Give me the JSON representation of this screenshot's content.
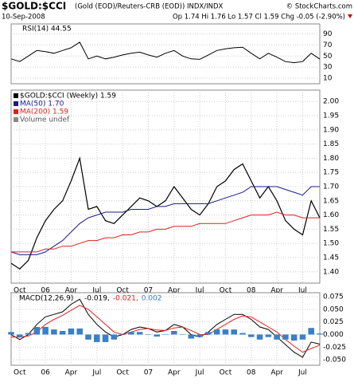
{
  "header": {
    "symbol": "$GOLD:$CCI",
    "description": "(Gold (EOD)/Reuters-CRB (EOD)) INDX/INDX",
    "copyright": "© StockCharts.com",
    "date": "10-Sep-2008",
    "quote": "Op 1.74 Hi 1.76 Lo 1.57 Cl 1.59 Chg -0.05 (-2.90%)"
  },
  "chart_data": [
    {
      "type": "line",
      "panel": "rsi",
      "ylim": [
        0,
        108
      ],
      "yticks": [
        90,
        70,
        50,
        30,
        10
      ],
      "grid": true,
      "series": [
        {
          "name": "RSI(14) 44.55",
          "color": "#000000",
          "values": [
            45,
            40,
            50,
            60,
            58,
            55,
            60,
            65,
            75,
            45,
            50,
            45,
            48,
            52,
            55,
            57,
            52,
            48,
            55,
            60,
            50,
            45,
            44,
            52,
            60,
            63,
            65,
            66,
            55,
            45,
            55,
            48,
            40,
            38,
            40,
            55,
            44.55
          ]
        }
      ]
    },
    {
      "type": "line",
      "panel": "price",
      "ylim": [
        1.36,
        2.04
      ],
      "yticks": [
        {
          "value": 2.0,
          "label": "2.00"
        },
        {
          "value": 1.95,
          "label": "1.95"
        },
        {
          "value": 1.9,
          "label": "1.90"
        },
        {
          "value": 1.85,
          "label": "1.85"
        },
        {
          "value": 1.8,
          "label": "1.80"
        },
        {
          "value": 1.75,
          "label": "1.75"
        },
        {
          "value": 1.7,
          "label": "1.70"
        },
        {
          "value": 1.65,
          "label": "1.65"
        },
        {
          "value": 1.6,
          "label": "1.60"
        },
        {
          "value": 1.55,
          "label": "1.55"
        },
        {
          "value": 1.5,
          "label": "1.50"
        },
        {
          "value": 1.45,
          "label": "1.45"
        },
        {
          "value": 1.4,
          "label": "1.40"
        }
      ],
      "grid": true,
      "volume_label": "Volume undef",
      "categories": [
        null,
        "Oct",
        null,
        null,
        "06",
        null,
        null,
        "Apr",
        null,
        null,
        "Jul",
        null,
        null,
        "Oct",
        null,
        null,
        "07",
        null,
        null,
        "Apr",
        null,
        null,
        "Jul",
        null,
        null,
        "Oct",
        null,
        null,
        "08",
        null,
        null,
        "Apr",
        null,
        null,
        "Jul",
        null,
        null
      ],
      "series": [
        {
          "name": "$GOLD:$CCI (Weekly) 1.59",
          "color": "#000000",
          "values": [
            1.43,
            1.41,
            1.44,
            1.52,
            1.58,
            1.62,
            1.65,
            1.72,
            1.8,
            1.62,
            1.63,
            1.58,
            1.57,
            1.6,
            1.63,
            1.66,
            1.65,
            1.63,
            1.65,
            1.7,
            1.66,
            1.62,
            1.6,
            1.64,
            1.7,
            1.72,
            1.76,
            1.78,
            1.72,
            1.66,
            1.7,
            1.65,
            1.58,
            1.55,
            1.53,
            1.65,
            1.59
          ]
        },
        {
          "name": "MA(50) 1.70",
          "color": "#1a1a8c",
          "values": [
            1.47,
            1.46,
            1.46,
            1.46,
            1.47,
            1.49,
            1.51,
            1.54,
            1.57,
            1.59,
            1.6,
            1.61,
            1.61,
            1.61,
            1.62,
            1.62,
            1.62,
            1.63,
            1.63,
            1.64,
            1.64,
            1.64,
            1.64,
            1.64,
            1.65,
            1.66,
            1.67,
            1.68,
            1.7,
            1.7,
            1.7,
            1.7,
            1.69,
            1.68,
            1.67,
            1.7,
            1.7
          ]
        },
        {
          "name": "MA(200) 1.59",
          "color": "#e0201a",
          "values": [
            1.47,
            1.47,
            1.47,
            1.47,
            1.48,
            1.48,
            1.49,
            1.49,
            1.5,
            1.51,
            1.51,
            1.52,
            1.52,
            1.53,
            1.53,
            1.54,
            1.54,
            1.55,
            1.55,
            1.56,
            1.56,
            1.56,
            1.57,
            1.57,
            1.57,
            1.57,
            1.58,
            1.59,
            1.6,
            1.6,
            1.6,
            1.61,
            1.6,
            1.6,
            1.59,
            1.59,
            1.59
          ]
        }
      ]
    },
    {
      "type": "macd",
      "panel": "macd",
      "label": "MACD(12,26,9)",
      "ylim": [
        -0.061,
        0.083
      ],
      "yticks": [
        {
          "value": 0.075,
          "label": "0.075"
        },
        {
          "value": 0.05,
          "label": "0.050"
        },
        {
          "value": 0.025,
          "label": "0.025"
        },
        {
          "value": 0,
          "label": "0.000"
        },
        {
          "value": -0.025,
          "label": "-0.025"
        },
        {
          "value": -0.05,
          "label": "-0.050"
        }
      ],
      "grid": true,
      "categories": [
        null,
        "Oct",
        null,
        null,
        "06",
        null,
        null,
        "Apr",
        null,
        null,
        "Jul",
        null,
        null,
        "Oct",
        null,
        null,
        "07",
        null,
        null,
        "Apr",
        null,
        null,
        "Jul",
        null,
        null,
        "Oct",
        null,
        null,
        "08",
        null,
        null,
        "Apr",
        null,
        null,
        "Jul",
        null,
        null
      ],
      "series": [
        {
          "name": "-0.019,",
          "color": "#000000",
          "values": [
            0,
            -0.01,
            0,
            0.02,
            0.035,
            0.04,
            0.045,
            0.06,
            0.07,
            0.04,
            0.02,
            0.005,
            -0.005,
            0,
            0.01,
            0.015,
            0.012,
            0.005,
            0.008,
            0.02,
            0.015,
            0,
            -0.005,
            0.005,
            0.02,
            0.03,
            0.04,
            0.04,
            0.03,
            0.015,
            0.01,
            -0.005,
            -0.02,
            -0.035,
            -0.045,
            -0.015,
            -0.019
          ]
        },
        {
          "name": "-0.021,",
          "color": "#e0201a",
          "values": [
            -0.005,
            -0.005,
            -0.003,
            0.005,
            0.02,
            0.03,
            0.038,
            0.048,
            0.058,
            0.05,
            0.035,
            0.02,
            0.005,
            0,
            0.005,
            0.01,
            0.012,
            0.009,
            0.008,
            0.013,
            0.015,
            0.008,
            0,
            0,
            0.01,
            0.02,
            0.03,
            0.037,
            0.035,
            0.025,
            0.015,
            0.005,
            -0.01,
            -0.023,
            -0.035,
            -0.028,
            -0.021
          ]
        },
        {
          "name": "0.002",
          "color": "#3a7fc8",
          "bar": true,
          "values": [
            0.005,
            -0.005,
            0.003,
            0.015,
            0.015,
            0.01,
            0.007,
            0.012,
            0.012,
            -0.01,
            -0.015,
            -0.015,
            -0.01,
            0,
            0.005,
            0.005,
            0,
            -0.004,
            0,
            0.007,
            0,
            -0.008,
            -0.005,
            0.005,
            0.01,
            0.01,
            0.01,
            0.003,
            -0.005,
            -0.01,
            -0.005,
            -0.01,
            -0.01,
            -0.012,
            -0.01,
            0.013,
            0.002
          ]
        }
      ]
    }
  ]
}
